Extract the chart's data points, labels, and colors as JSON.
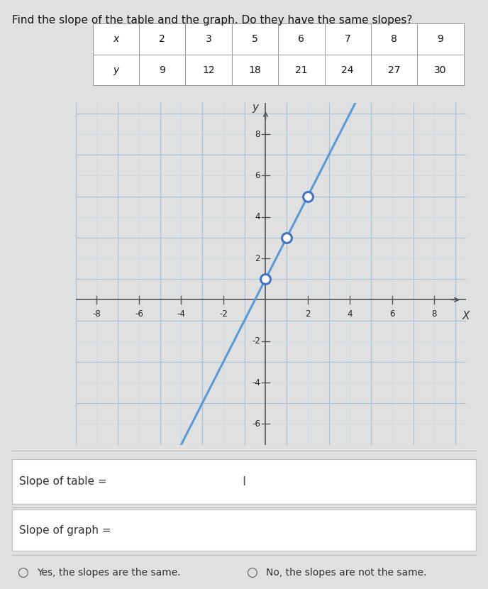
{
  "title": "Find the slope of the table and the graph. Do they have the same slopes?",
  "table_x": [
    "x",
    "2",
    "3",
    "5",
    "6",
    "7",
    "8",
    "9"
  ],
  "table_y": [
    "y",
    "9",
    "12",
    "18",
    "21",
    "24",
    "27",
    "30"
  ],
  "graph_xlim": [
    -9,
    9.5
  ],
  "graph_ylim": [
    -7,
    9.5
  ],
  "graph_xticks": [
    -8,
    -6,
    -4,
    -2,
    2,
    4,
    6,
    8
  ],
  "graph_yticks": [
    -6,
    -4,
    -2,
    2,
    4,
    6,
    8
  ],
  "line_color": "#5b9bd5",
  "line_slope": 2.0,
  "line_intercept": 1.0,
  "dot_points": [
    [
      0,
      1
    ],
    [
      1,
      3
    ],
    [
      2,
      5
    ]
  ],
  "dot_color": "#4472c4",
  "grid_color_light": "#c5d9e8",
  "grid_color_heavy": "#a8c4d8",
  "axis_color": "#4472c4",
  "plot_bg_color": "#d6e4f0",
  "outer_bg": "#e0e0e0",
  "table_bg": "#e0e0e0",
  "slope_table_label": "Slope of table =",
  "slope_graph_label": "Slope of graph =",
  "answer_yes": "Yes, the slopes are the same.",
  "answer_no": "No, the slopes are not the same.",
  "input_cursor": "I"
}
